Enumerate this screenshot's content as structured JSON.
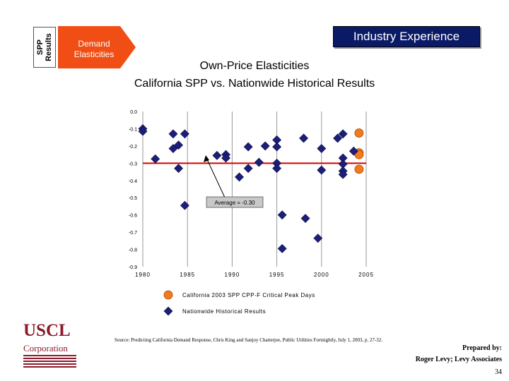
{
  "side_tab": {
    "label": "SPP\nResults"
  },
  "section_label": "Demand\nElasticities",
  "header_box": "Industry Experience",
  "colors": {
    "header": "#0b1a66",
    "accent": "#f04e14",
    "series_ca": "#f07a1c",
    "series_nat": "#1b1f7a",
    "average_line": "#d60000",
    "logo": "#8b1a2b"
  },
  "chart_data": {
    "type": "scatter",
    "title": "Own-Price Elasticities",
    "subtitle": "California SPP vs. Nationwide Historical Results",
    "xlim": [
      1980,
      2005
    ],
    "ylim": [
      -0.9,
      0.0
    ],
    "x_ticks": [
      "1980",
      "1985",
      "1990",
      "1995",
      "2000",
      "2005"
    ],
    "x_tick_values": [
      1980,
      1985,
      1990,
      1995,
      2000,
      2005
    ],
    "y_ticks": [
      "0.0",
      "-0.1",
      "-0.2",
      "-0.3",
      "-0.4",
      "-0.5",
      "-0.6",
      "-0.7",
      "-0.8",
      "-0.9"
    ],
    "y_tick_values": [
      0.0,
      -0.1,
      -0.2,
      -0.3,
      -0.4,
      -0.5,
      -0.6,
      -0.7,
      -0.8,
      -0.9
    ],
    "grid": "vertical",
    "average": {
      "value": -0.3,
      "label": "Average = -0.30"
    },
    "series": [
      {
        "name": "California 2003 SPP CPP-F Critical Peak Days",
        "marker": "circle",
        "points": [
          [
            2004.2,
            -0.125
          ],
          [
            2004.2,
            -0.24
          ],
          [
            2004.2,
            -0.25
          ],
          [
            2004.2,
            -0.335
          ]
        ]
      },
      {
        "name": "Nationwide Historical Results",
        "marker": "diamond",
        "points": [
          [
            1980.0,
            -0.1
          ],
          [
            1980.0,
            -0.115
          ],
          [
            1981.4,
            -0.275
          ],
          [
            1983.4,
            -0.13
          ],
          [
            1983.4,
            -0.215
          ],
          [
            1984.0,
            -0.195
          ],
          [
            1984.0,
            -0.33
          ],
          [
            1984.7,
            -0.13
          ],
          [
            1984.7,
            -0.545
          ],
          [
            1988.3,
            -0.255
          ],
          [
            1989.3,
            -0.25
          ],
          [
            1989.3,
            -0.27
          ],
          [
            1990.8,
            -0.38
          ],
          [
            1991.8,
            -0.205
          ],
          [
            1991.8,
            -0.33
          ],
          [
            1993.0,
            -0.295
          ],
          [
            1993.7,
            -0.2
          ],
          [
            1995.0,
            -0.165
          ],
          [
            1995.0,
            -0.205
          ],
          [
            1995.0,
            -0.3
          ],
          [
            1995.0,
            -0.33
          ],
          [
            1995.6,
            -0.6
          ],
          [
            1995.6,
            -0.795
          ],
          [
            1998.0,
            -0.155
          ],
          [
            1998.2,
            -0.62
          ],
          [
            1999.6,
            -0.735
          ],
          [
            2000.0,
            -0.215
          ],
          [
            2000.0,
            -0.34
          ],
          [
            2001.8,
            -0.155
          ],
          [
            2002.4,
            -0.13
          ],
          [
            2002.4,
            -0.27
          ],
          [
            2002.4,
            -0.305
          ],
          [
            2002.4,
            -0.345
          ],
          [
            2002.4,
            -0.365
          ],
          [
            2003.6,
            -0.23
          ]
        ]
      }
    ]
  },
  "source_note": "Source: Predicting California Demand Response, Chris King and Sanjoy Chatterjee, Public Utilities Fortnightly, July 1, 2003, p. 27-32.",
  "logo": {
    "main": "USCL",
    "sub": "Corporation"
  },
  "prepared_by": {
    "line1": "Prepared by:",
    "line2": "Roger Levy; Levy Associates"
  },
  "page_number": "34"
}
